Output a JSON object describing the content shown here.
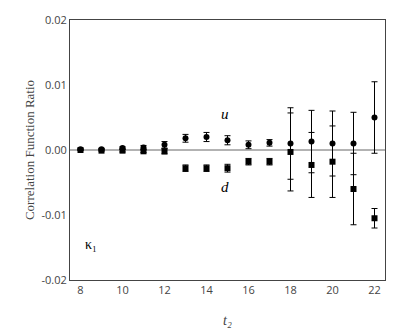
{
  "chart_data": {
    "type": "scatter",
    "title": "",
    "x_label": "t₂",
    "y_label": "Correlation Function Ratio",
    "xlim": [
      7.5,
      22.5
    ],
    "ylim": [
      -0.02,
      0.02
    ],
    "xticks": [
      8,
      10,
      12,
      14,
      16,
      18,
      20,
      22
    ],
    "yticks": [
      -0.02,
      -0.01,
      {
        "value": 0,
        "label": "0.00"
      },
      0.01,
      0.02
    ],
    "grid": false,
    "reference_line": {
      "y": 0.0,
      "color": "#666666"
    },
    "series": [
      {
        "marker": "circle",
        "color": "#000000",
        "x": [
          8,
          9,
          10,
          11,
          12,
          13,
          14,
          15,
          16,
          17,
          18,
          19,
          20,
          21,
          22
        ],
        "values": [
          0.0001,
          0.0001,
          0.0003,
          0.0004,
          0.0008,
          0.0018,
          0.002,
          0.0015,
          0.0008,
          0.0011,
          0.001,
          0.0013,
          0.001,
          0.001,
          0.005
        ],
        "errors": [
          0.0001,
          0.0001,
          0.0002,
          0.0003,
          0.0005,
          0.0006,
          0.0007,
          0.0007,
          0.0006,
          0.0005,
          0.0055,
          0.0048,
          0.005,
          0.0048,
          0.0055
        ]
      },
      {
        "marker": "square",
        "color": "#000000",
        "x": [
          8,
          9,
          10,
          11,
          12,
          13,
          14,
          15,
          16,
          17,
          18,
          19,
          20,
          21,
          22
        ],
        "values": [
          0.0,
          -0.0001,
          -0.0001,
          -0.0002,
          -0.0002,
          -0.0028,
          -0.0028,
          -0.0028,
          -0.0018,
          -0.0018,
          -0.0003,
          -0.0023,
          -0.0018,
          -0.006,
          -0.0105
        ],
        "errors": [
          0.0001,
          0.0001,
          0.0002,
          0.0002,
          0.0004,
          0.0005,
          0.0005,
          0.0006,
          0.0005,
          0.0005,
          0.006,
          0.005,
          0.0055,
          0.0055,
          0.0015
        ]
      }
    ],
    "annotations": [
      {
        "text": "u",
        "x": 14.6,
        "y": 0.004,
        "italic": true
      },
      {
        "text": "d",
        "x": 14.6,
        "y": -0.0072,
        "italic": true
      },
      {
        "text": "κ₁",
        "x": 8.1,
        "y": -0.016,
        "italic": false
      }
    ]
  }
}
